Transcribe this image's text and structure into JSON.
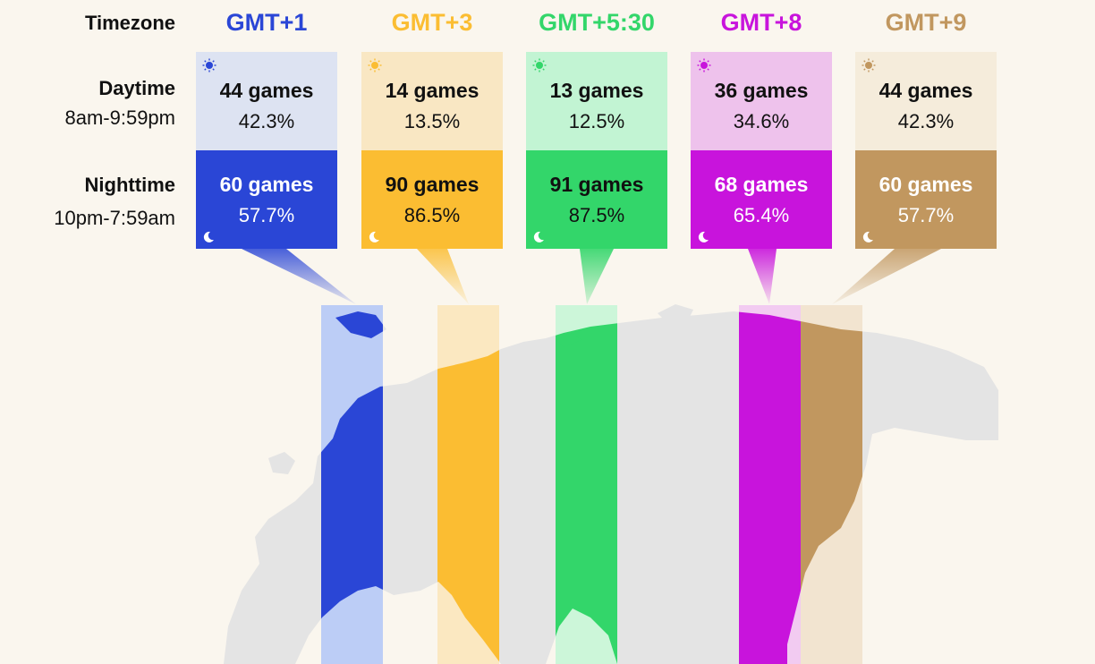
{
  "row_labels": {
    "timezone": "Timezone",
    "day_title": "Daytime",
    "day_range": "8am-9:59pm",
    "night_title": "Nighttime",
    "night_range": "10pm-7:59am"
  },
  "timezones": [
    {
      "name": "GMT+1",
      "color": "#2a46d6",
      "day_bg": "#dde3f2",
      "strip_bg": "#bccdf6",
      "night_text": "#ffffff",
      "day_games": "44 games",
      "day_pct": "42.3%",
      "night_games": "60 games",
      "night_pct": "57.7%"
    },
    {
      "name": "GMT+3",
      "color": "#fbbd32",
      "day_bg": "#f9e7c3",
      "strip_bg": "#fbe8c1",
      "night_text": "#111111",
      "day_games": "14 games",
      "day_pct": "13.5%",
      "night_games": "90 games",
      "night_pct": "86.5%"
    },
    {
      "name": "GMT+5:30",
      "color": "#33d66a",
      "day_bg": "#c2f4d3",
      "strip_bg": "#ccf6d9",
      "night_text": "#111111",
      "day_games": "13 games",
      "day_pct": "12.5%",
      "night_games": "91 games",
      "night_pct": "87.5%"
    },
    {
      "name": "GMT+8",
      "color": "#c814dc",
      "day_bg": "#eec2ec",
      "strip_bg": "#f2cbf1",
      "night_text": "#ffffff",
      "day_games": "36 games",
      "day_pct": "34.6%",
      "night_games": "68 games",
      "night_pct": "65.4%"
    },
    {
      "name": "GMT+9",
      "color": "#c1975f",
      "day_bg": "#f5ecdb",
      "strip_bg": "#f2e4d0",
      "night_text": "#ffffff",
      "day_games": "44 games",
      "day_pct": "42.3%",
      "night_games": "60 games",
      "night_pct": "57.7%"
    }
  ],
  "icons": {
    "day": "sun-icon",
    "night": "moon-icon"
  }
}
